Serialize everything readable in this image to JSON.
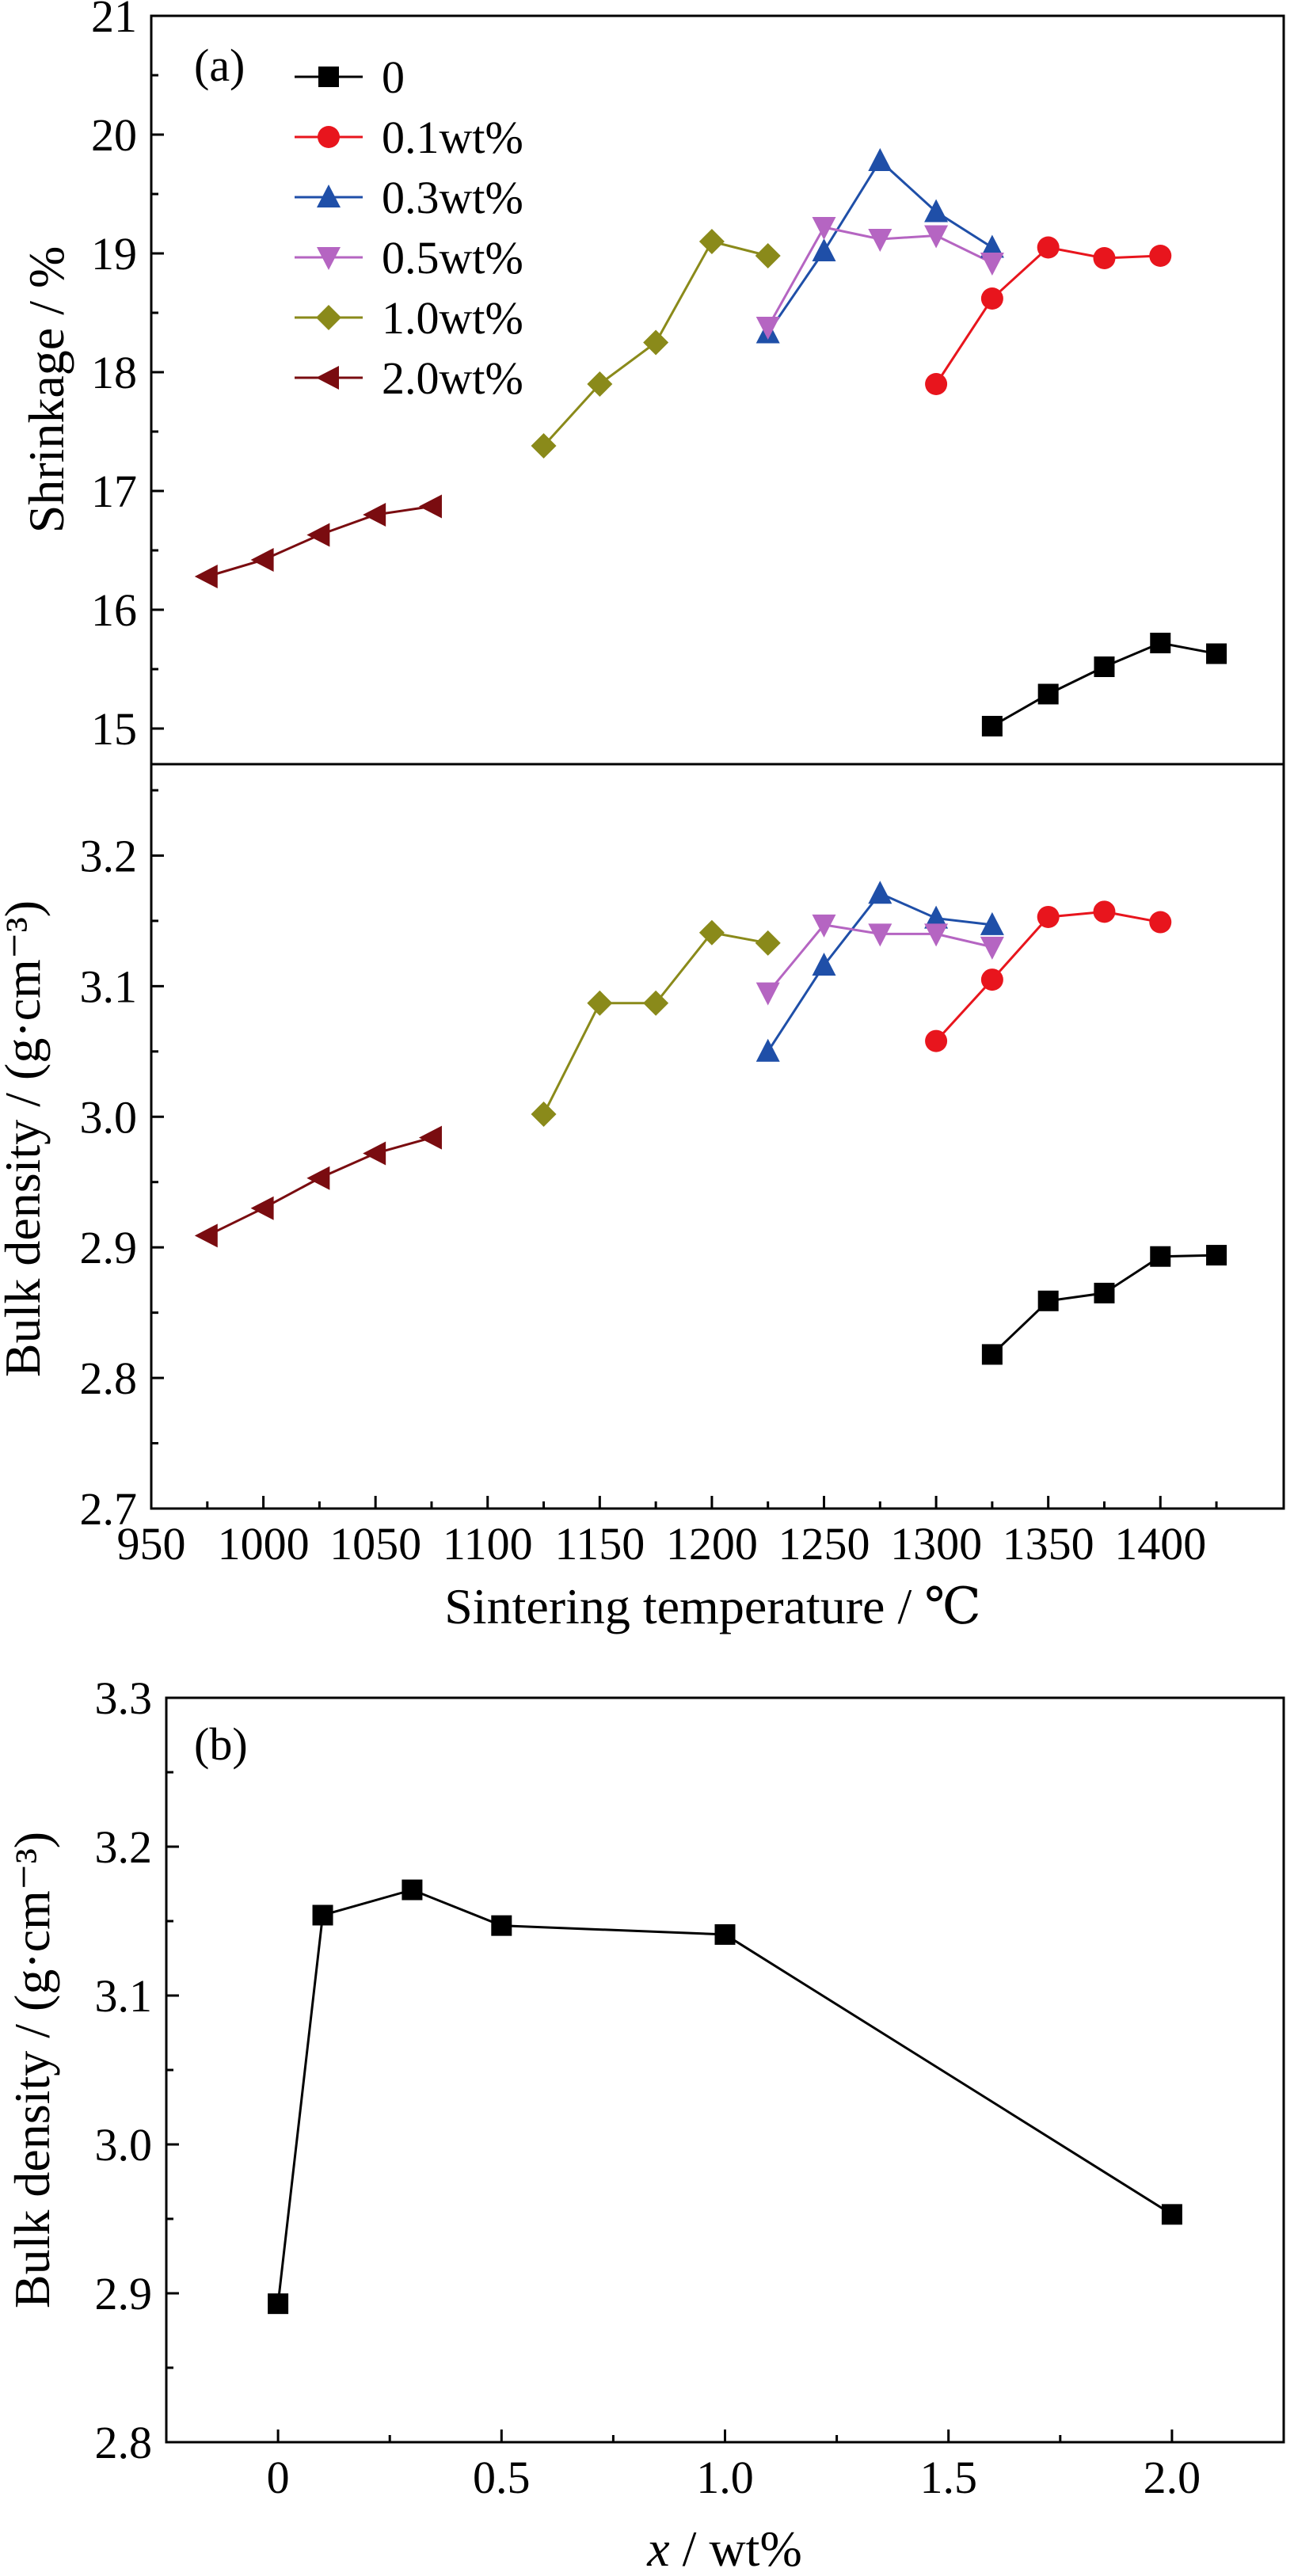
{
  "chart_data": [
    {
      "panel_label": "(a)",
      "type": "line",
      "subplots": [
        {
          "ylabel": "Shrinkage / %",
          "ylim": [
            14.7,
            21
          ],
          "yticks": [
            15,
            16,
            17,
            18,
            19,
            20,
            21
          ],
          "series": [
            {
              "name": "0",
              "color": "#000000",
              "marker": "square",
              "x": [
                1325,
                1350,
                1375,
                1400,
                1425
              ],
              "y": [
                15.02,
                15.29,
                15.52,
                15.72,
                15.63
              ]
            },
            {
              "name": "0.1wt%",
              "color": "#e8151d",
              "marker": "circle",
              "x": [
                1300,
                1325,
                1350,
                1375,
                1400
              ],
              "y": [
                17.9,
                18.62,
                19.05,
                18.96,
                18.98
              ]
            },
            {
              "name": "0.3wt%",
              "color": "#1f4fa8",
              "marker": "triangle-up",
              "x": [
                1225,
                1250,
                1275,
                1300,
                1325
              ],
              "y": [
                18.33,
                19.02,
                19.78,
                19.35,
                19.05
              ]
            },
            {
              "name": "0.5wt%",
              "color": "#b565c2",
              "marker": "triangle-down",
              "x": [
                1225,
                1250,
                1275,
                1300,
                1325
              ],
              "y": [
                18.38,
                19.22,
                19.12,
                19.15,
                18.92
              ]
            },
            {
              "name": "1.0wt%",
              "color": "#8a8a1a",
              "marker": "diamond",
              "x": [
                1125,
                1150,
                1175,
                1200,
                1225
              ],
              "y": [
                17.38,
                17.9,
                18.25,
                19.1,
                18.98
              ]
            },
            {
              "name": "2.0wt%",
              "color": "#7a0c10",
              "marker": "triangle-left",
              "x": [
                975,
                1000,
                1025,
                1050,
                1075
              ],
              "y": [
                16.28,
                16.42,
                16.63,
                16.8,
                16.87
              ]
            }
          ]
        },
        {
          "ylabel": "Bulk density / (g·cm⁻³)",
          "ylim": [
            2.7,
            3.27
          ],
          "yticks": [
            "2.7",
            "2.8",
            "2.9",
            "3.0",
            "3.1",
            "3.2"
          ],
          "xlabel": "Sintering temperature / ℃",
          "xlim": [
            950,
            1455
          ],
          "xticks": [
            950,
            1000,
            1050,
            1100,
            1150,
            1200,
            1250,
            1300,
            1350,
            1400
          ],
          "series": [
            {
              "name": "0",
              "color": "#000000",
              "marker": "square",
              "x": [
                1325,
                1350,
                1375,
                1400,
                1425
              ],
              "y": [
                2.818,
                2.859,
                2.865,
                2.893,
                2.894
              ]
            },
            {
              "name": "0.1wt%",
              "color": "#e8151d",
              "marker": "circle",
              "x": [
                1300,
                1325,
                1350,
                1375,
                1400
              ],
              "y": [
                3.058,
                3.105,
                3.153,
                3.157,
                3.149
              ]
            },
            {
              "name": "0.3wt%",
              "color": "#1f4fa8",
              "marker": "triangle-up",
              "x": [
                1225,
                1250,
                1275,
                1300,
                1325
              ],
              "y": [
                3.05,
                3.116,
                3.171,
                3.152,
                3.147
              ]
            },
            {
              "name": "0.5wt%",
              "color": "#b565c2",
              "marker": "triangle-down",
              "x": [
                1225,
                1250,
                1275,
                1300,
                1325
              ],
              "y": [
                3.095,
                3.147,
                3.14,
                3.14,
                3.13
              ]
            },
            {
              "name": "1.0wt%",
              "color": "#8a8a1a",
              "marker": "diamond",
              "x": [
                1125,
                1150,
                1175,
                1200,
                1225
              ],
              "y": [
                3.002,
                3.087,
                3.087,
                3.141,
                3.133
              ]
            },
            {
              "name": "2.0wt%",
              "color": "#7a0c10",
              "marker": "triangle-left",
              "x": [
                975,
                1000,
                1025,
                1050,
                1075
              ],
              "y": [
                2.909,
                2.93,
                2.953,
                2.972,
                2.984
              ]
            }
          ]
        }
      ],
      "legend_position": "top-left",
      "grid": false
    },
    {
      "panel_label": "(b)",
      "type": "line",
      "xlabel_italic": "x",
      "xlabel_rest": " / wt%",
      "ylabel": "Bulk density / (g·cm⁻³)",
      "xlim": [
        -0.25,
        2.25
      ],
      "ylim": [
        2.8,
        3.3
      ],
      "xticks": [
        "0",
        "0.5",
        "1.0",
        "1.5",
        "2.0"
      ],
      "yticks": [
        "2.8",
        "2.9",
        "3.0",
        "3.1",
        "3.2",
        "3.3"
      ],
      "series": [
        {
          "color": "#000000",
          "marker": "square",
          "x": [
            0,
            0.1,
            0.3,
            0.5,
            1.0,
            2.0
          ],
          "y": [
            2.893,
            3.154,
            3.171,
            3.147,
            3.141,
            2.953
          ]
        }
      ],
      "grid": false
    }
  ]
}
